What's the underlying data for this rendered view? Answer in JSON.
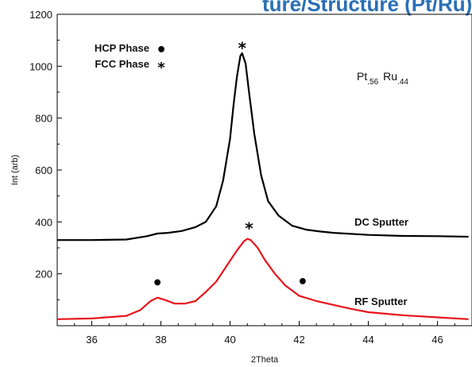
{
  "chart_data": {
    "type": "line",
    "title": "",
    "partial_header": "ture/Structure (Pt/Ru)",
    "xlabel": "2Theta",
    "ylabel": "Int (arb)",
    "xlim": [
      35,
      47
    ],
    "ylim": [
      0,
      1200
    ],
    "x_ticks": [
      36,
      38,
      40,
      42,
      44,
      46
    ],
    "y_ticks": [
      200,
      400,
      600,
      800,
      1000,
      1200
    ],
    "composition": {
      "base1": "Pt",
      "sub1": ".56",
      "base2": "Ru",
      "sub2": ".44"
    },
    "legend": [
      {
        "label": "HCP Phase",
        "symbol": "•"
      },
      {
        "label": "FCC Phase",
        "symbol": "*"
      }
    ],
    "series": [
      {
        "name": "DC Sputter",
        "color": "#000000",
        "x": [
          35,
          36,
          37,
          37.6,
          37.9,
          38.2,
          38.6,
          39.0,
          39.3,
          39.6,
          39.8,
          40.0,
          40.1,
          40.2,
          40.3,
          40.35,
          40.45,
          40.55,
          40.7,
          40.9,
          41.1,
          41.4,
          41.8,
          42.2,
          42.6,
          43.0,
          44.0,
          45.0,
          46.0,
          46.9
        ],
        "values": [
          330,
          330,
          332,
          345,
          355,
          358,
          365,
          380,
          400,
          460,
          560,
          720,
          850,
          960,
          1040,
          1050,
          1010,
          900,
          740,
          580,
          480,
          425,
          385,
          370,
          363,
          358,
          350,
          346,
          345,
          343
        ]
      },
      {
        "name": "RF Sputter",
        "color": "#e8141c",
        "x": [
          35,
          36,
          37,
          37.4,
          37.7,
          37.9,
          38.1,
          38.4,
          38.7,
          39.0,
          39.3,
          39.6,
          39.9,
          40.2,
          40.4,
          40.5,
          40.6,
          40.8,
          41.0,
          41.3,
          41.6,
          42.0,
          42.5,
          43.0,
          43.5,
          44.0,
          45.0,
          46.0,
          46.9
        ],
        "values": [
          25,
          28,
          38,
          60,
          95,
          108,
          100,
          85,
          85,
          95,
          130,
          170,
          230,
          290,
          325,
          335,
          330,
          300,
          255,
          200,
          155,
          115,
          95,
          80,
          65,
          52,
          40,
          32,
          25
        ]
      }
    ],
    "series_labels": [
      {
        "text": "DC Sputter",
        "x": 43.6,
        "y": 385
      },
      {
        "text": "RF Sputter",
        "x": 43.6,
        "y": 80
      }
    ],
    "markers": [
      {
        "symbol": "*",
        "x": 40.35,
        "y": 1085
      },
      {
        "symbol": "*",
        "x": 40.55,
        "y": 390
      },
      {
        "symbol": "•",
        "x": 37.9,
        "y": 160
      },
      {
        "symbol": "•",
        "x": 42.1,
        "y": 165
      }
    ]
  }
}
